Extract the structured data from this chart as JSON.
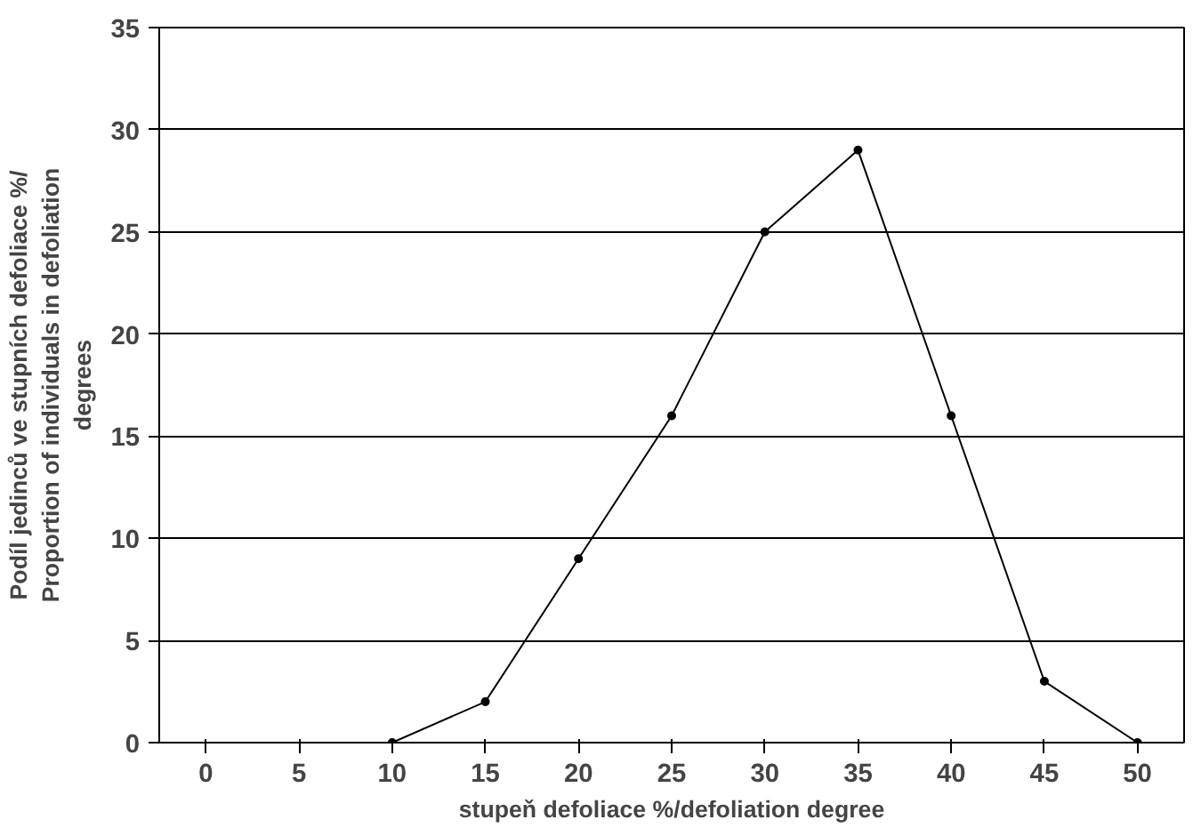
{
  "chart_data": {
    "type": "line",
    "xlabel": "stupeň defoliace %/defoliation degree",
    "ylabel": "Podíl jedinců ve stupních defoliace %/ Proportion of individuals in defoliation degrees",
    "categories": [
      "0",
      "5",
      "10",
      "15",
      "20",
      "25",
      "30",
      "35",
      "40",
      "45",
      "50"
    ],
    "series": [
      {
        "color": "#000000",
        "values": [
          null,
          null,
          0,
          2,
          9,
          16,
          25,
          29,
          16,
          3,
          0
        ]
      }
    ],
    "ylim": [
      0,
      35
    ],
    "yticks": [
      0,
      5,
      10,
      15,
      20,
      25,
      30,
      35
    ],
    "grid": "y",
    "marker": "circle",
    "line_style": "solid"
  }
}
